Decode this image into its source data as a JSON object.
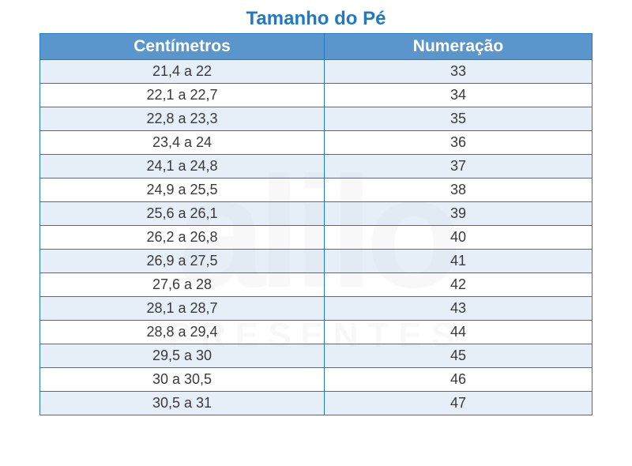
{
  "title": "Tamanho do Pé",
  "watermark_main": "alilo",
  "watermark_sub": "PRESENTES",
  "table": {
    "columns": [
      "Centímetros",
      "Numeração"
    ],
    "rows": [
      [
        "21,4 a 22",
        "33"
      ],
      [
        "22,1 a 22,7",
        "34"
      ],
      [
        "22,8 a 23,3",
        "35"
      ],
      [
        "23,4 a 24",
        "36"
      ],
      [
        "24,1 a 24,8",
        "37"
      ],
      [
        "24,9 a 25,5",
        "38"
      ],
      [
        "25,6 a 26,1",
        "39"
      ],
      [
        "26,2 a 26,8",
        "40"
      ],
      [
        "26,9 a 27,5",
        "41"
      ],
      [
        "27,6 a 28",
        "42"
      ],
      [
        "28,1 a 28,7",
        "43"
      ],
      [
        "28,8 a 29,4",
        "44"
      ],
      [
        "29,5 a 30",
        "45"
      ],
      [
        "30 a 30,5",
        "46"
      ],
      [
        "30,5 a 31",
        "47"
      ]
    ],
    "header_bg": "#5a96cc",
    "header_fg": "#ffffff",
    "border_color": "#2079c3",
    "odd_row_bg": "#dce8f3",
    "even_row_bg": "#ffffff",
    "cell_fg": "#3a3a3a",
    "title_color": "#2079c3",
    "title_fontsize": 24,
    "header_fontsize": 21,
    "cell_fontsize": 18
  }
}
